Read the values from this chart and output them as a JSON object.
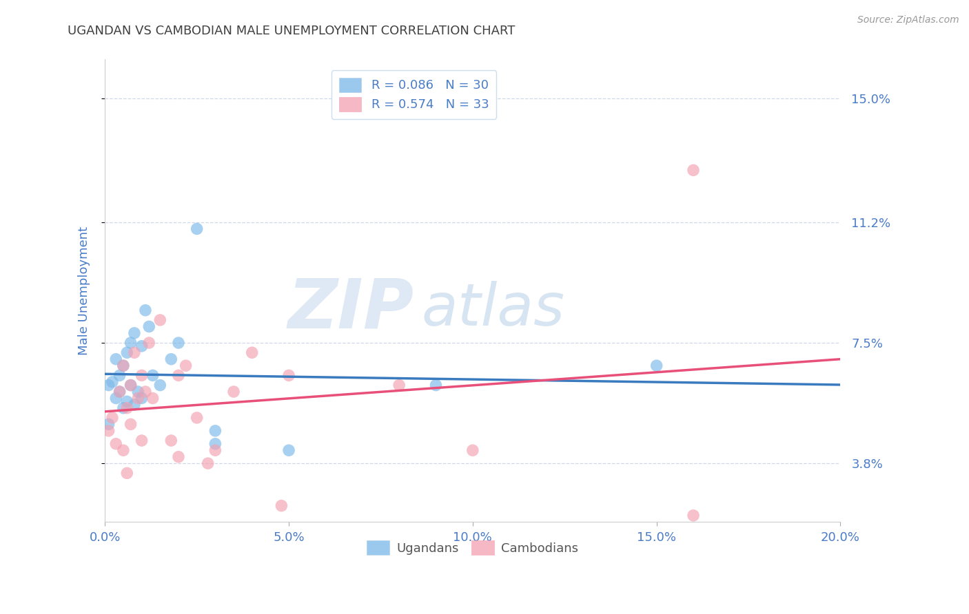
{
  "title": "UGANDAN VS CAMBODIAN MALE UNEMPLOYMENT CORRELATION CHART",
  "source": "Source: ZipAtlas.com",
  "ylabel": "Male Unemployment",
  "xlim": [
    0.0,
    0.2
  ],
  "ylim": [
    0.02,
    0.162
  ],
  "xtick_labels": [
    "0.0%",
    "5.0%",
    "10.0%",
    "15.0%",
    "20.0%"
  ],
  "xtick_vals": [
    0.0,
    0.05,
    0.1,
    0.15,
    0.2
  ],
  "ytick_labels": [
    "3.8%",
    "7.5%",
    "11.2%",
    "15.0%"
  ],
  "ytick_vals": [
    0.038,
    0.075,
    0.112,
    0.15
  ],
  "ugandan_color": "#7ab8e8",
  "cambodian_color": "#f4a0b0",
  "ugandan_line_color": "#3a7bbf",
  "cambodian_line_color": "#e8507a",
  "watermark_zip_color": "#c5d8ed",
  "watermark_atlas_color": "#a8c4e0",
  "ugandan_x": [
    0.001,
    0.002,
    0.003,
    0.003,
    0.004,
    0.004,
    0.005,
    0.005,
    0.006,
    0.006,
    0.007,
    0.007,
    0.008,
    0.008,
    0.009,
    0.01,
    0.01,
    0.011,
    0.012,
    0.013,
    0.015,
    0.018,
    0.02,
    0.025,
    0.03,
    0.03,
    0.05,
    0.09,
    0.15,
    0.001
  ],
  "ugandan_y": [
    0.062,
    0.063,
    0.058,
    0.07,
    0.065,
    0.06,
    0.068,
    0.055,
    0.072,
    0.057,
    0.075,
    0.062,
    0.078,
    0.056,
    0.06,
    0.074,
    0.058,
    0.085,
    0.08,
    0.065,
    0.062,
    0.07,
    0.075,
    0.11,
    0.048,
    0.044,
    0.042,
    0.062,
    0.068,
    0.05
  ],
  "cambodian_x": [
    0.001,
    0.002,
    0.003,
    0.004,
    0.005,
    0.005,
    0.006,
    0.006,
    0.007,
    0.007,
    0.008,
    0.009,
    0.01,
    0.01,
    0.011,
    0.012,
    0.013,
    0.015,
    0.018,
    0.02,
    0.02,
    0.022,
    0.025,
    0.028,
    0.03,
    0.035,
    0.04,
    0.048,
    0.05,
    0.08,
    0.1,
    0.16,
    0.16
  ],
  "cambodian_y": [
    0.048,
    0.052,
    0.044,
    0.06,
    0.042,
    0.068,
    0.055,
    0.035,
    0.062,
    0.05,
    0.072,
    0.058,
    0.045,
    0.065,
    0.06,
    0.075,
    0.058,
    0.082,
    0.045,
    0.065,
    0.04,
    0.068,
    0.052,
    0.038,
    0.042,
    0.06,
    0.072,
    0.025,
    0.065,
    0.062,
    0.042,
    0.022,
    0.128
  ],
  "background_color": "#ffffff",
  "grid_color": "#d0d8e8",
  "title_color": "#404040",
  "axis_label_color": "#4a7cc7",
  "tick_label_color": "#4a7cc7"
}
